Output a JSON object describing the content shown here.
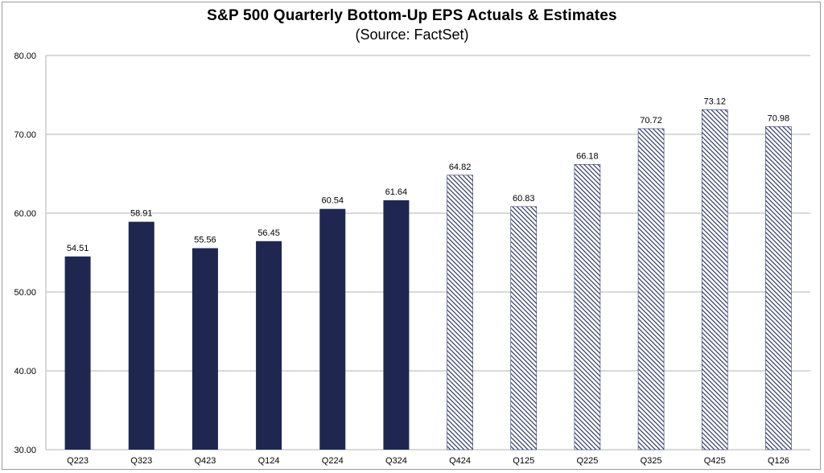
{
  "chart_data": {
    "type": "bar",
    "title": "S&P 500 Quarterly Bottom-Up EPS Actuals & Estimates",
    "subtitle": "(Source: FactSet)",
    "xlabel": "",
    "ylabel": "",
    "categories": [
      "Q223",
      "Q323",
      "Q423",
      "Q124",
      "Q224",
      "Q324",
      "Q424",
      "Q125",
      "Q225",
      "Q325",
      "Q425",
      "Q126"
    ],
    "values": [
      54.51,
      58.91,
      55.56,
      56.45,
      60.54,
      61.64,
      64.82,
      60.83,
      66.18,
      70.72,
      73.12,
      70.98
    ],
    "value_labels": [
      "54.51",
      "58.91",
      "55.56",
      "56.45",
      "60.54",
      "61.64",
      "64.82",
      "60.83",
      "66.18",
      "70.72",
      "73.12",
      "70.98"
    ],
    "bar_style": [
      "solid",
      "solid",
      "solid",
      "solid",
      "solid",
      "solid",
      "hatched",
      "hatched",
      "hatched",
      "hatched",
      "hatched",
      "hatched"
    ],
    "ylim": [
      30,
      80
    ],
    "yticks": [
      "30.00",
      "40.00",
      "50.00",
      "60.00",
      "70.00",
      "80.00"
    ],
    "ytick_values": [
      30,
      40,
      50,
      60,
      70,
      80
    ],
    "grid": true,
    "legend": "none",
    "colors": {
      "actual": "#1f2751",
      "estimate": "#2f3866",
      "grid": "#b3b3b3"
    }
  }
}
